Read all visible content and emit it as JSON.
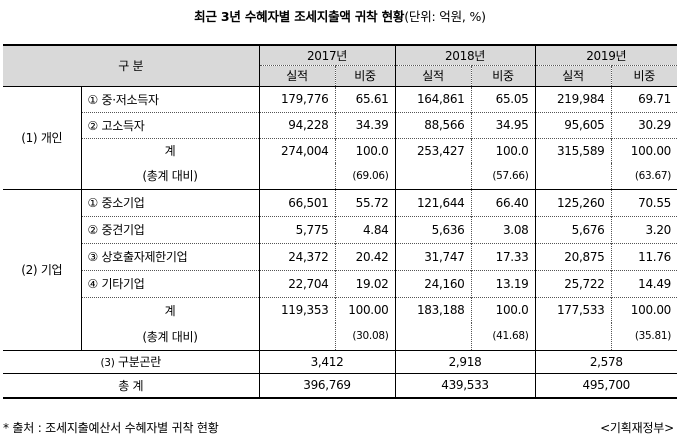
{
  "title": {
    "main": "최근 3년 수혜자별 조세지출액 귀착 현황",
    "unit": "(단위: 억원, %)"
  },
  "header": {
    "category": "구 분",
    "years": [
      "2017년",
      "2018년",
      "2019년"
    ],
    "actual": "실적",
    "share": "비중"
  },
  "individual": {
    "label": "(1) 개인",
    "rows": [
      {
        "num": "①",
        "name": "중·저소득자",
        "v": [
          "179,776",
          "65.61",
          "164,861",
          "65.05",
          "219,984",
          "69.71"
        ]
      },
      {
        "num": "②",
        "name": "고소득자",
        "v": [
          "94,228",
          "34.39",
          "88,566",
          "34.95",
          "95,605",
          "30.29"
        ]
      }
    ],
    "total": {
      "label": "계",
      "v": [
        "274,004",
        "100.0",
        "253,427",
        "100.0",
        "315,589",
        "100.00"
      ]
    },
    "overall": {
      "label": "(총계 대비)",
      "v": [
        "(69.06)",
        "(57.66)",
        "(63.67)"
      ]
    }
  },
  "business": {
    "label": "(2) 기업",
    "rows": [
      {
        "num": "①",
        "name": "중소기업",
        "v": [
          "66,501",
          "55.72",
          "121,644",
          "66.40",
          "125,260",
          "70.55"
        ]
      },
      {
        "num": "②",
        "name": "중견기업",
        "v": [
          "5,775",
          "4.84",
          "5,636",
          "3.08",
          "5,676",
          "3.20"
        ]
      },
      {
        "num": "③",
        "name": "상호출자제한기업",
        "v": [
          "24,372",
          "20.42",
          "31,747",
          "17.33",
          "20,875",
          "11.76"
        ]
      },
      {
        "num": "④",
        "name": "기타기업",
        "v": [
          "22,704",
          "19.02",
          "24,160",
          "13.19",
          "25,722",
          "14.49"
        ]
      }
    ],
    "total": {
      "label": "계",
      "v": [
        "119,353",
        "100.00",
        "183,188",
        "100.0",
        "177,533",
        "100.00"
      ]
    },
    "overall": {
      "label": "(총계 대비)",
      "v": [
        "(30.08)",
        "(41.68)",
        "(35.81)"
      ]
    }
  },
  "unclassified": {
    "num": "(3)",
    "name": "구분곤란",
    "v": [
      "3,412",
      "2,918",
      "2,578"
    ]
  },
  "grand_total": {
    "label": "총 계",
    "v": [
      "396,769",
      "439,533",
      "495,700"
    ]
  },
  "footer": {
    "source": "* 출처 : 조세지출예산서 수혜자별 귀착 현황",
    "agency": "<기획재정부>"
  }
}
